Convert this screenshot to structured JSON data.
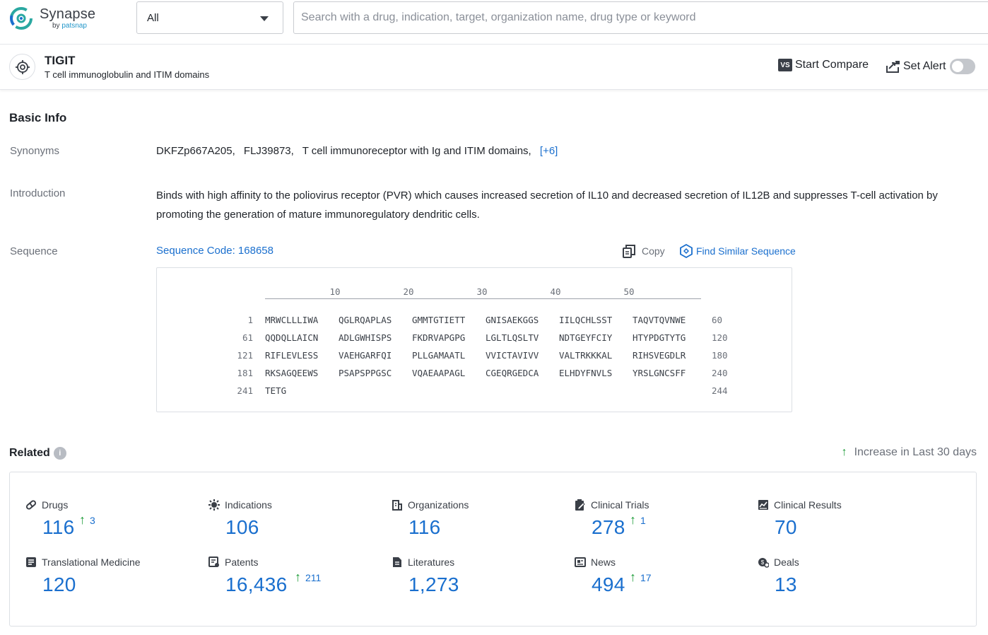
{
  "app": {
    "logo_name": "Synapse",
    "logo_by": "by",
    "logo_brand": "patsnap",
    "brand_color": "#1a6fce"
  },
  "search": {
    "scope": "All",
    "placeholder": "Search with a drug, indication, target, organization name, drug type or keyword"
  },
  "target": {
    "name": "TIGIT",
    "full_name": "T cell immunoglobulin and ITIM domains",
    "start_compare": "Start Compare",
    "compare_icon_text": "VS",
    "set_alert": "Set Alert",
    "alert_enabled": false
  },
  "basic_info": {
    "title": "Basic Info",
    "synonyms_label": "Synonyms",
    "synonyms": [
      "DKFZp667A205,",
      "FLJ39873,",
      "T cell immunoreceptor with Ig and ITIM domains,"
    ],
    "synonyms_more": "[+6]",
    "introduction_label": "Introduction",
    "introduction": "Binds with high affinity to the poliovirus receptor (PVR) which causes increased secretion of IL10 and decreased secretion of IL12B and suppresses T-cell activation by promoting the generation of mature immunoregulatory dendritic cells.",
    "sequence_label": "Sequence",
    "sequence_code": "Sequence Code: 168658",
    "copy": "Copy",
    "find_similar": "Find Similar Sequence",
    "ruler": [
      "10",
      "20",
      "30",
      "40",
      "50"
    ],
    "rows": [
      {
        "start": "1",
        "blocks": [
          "MRWCLLLIWA",
          "QGLRQAPLAS",
          "GMMTGTIETT",
          "GNISAEKGGS",
          "IILQCHLSST",
          "TAQVTQVNWE"
        ],
        "end": "60"
      },
      {
        "start": "61",
        "blocks": [
          "QQDQLLAICN",
          "ADLGWHISPS",
          "FKDRVAPGPG",
          "LGLTLQSLTV",
          "NDTGEYFCIY",
          "HTYPDGTYTG"
        ],
        "end": "120"
      },
      {
        "start": "121",
        "blocks": [
          "RIFLEVLESS",
          "VAEHGARFQI",
          "PLLGAMAATL",
          "VVICTAVIVV",
          "VALTRKKKAL",
          "RIHSVEGDLR"
        ],
        "end": "180"
      },
      {
        "start": "181",
        "blocks": [
          "RKSAGQEEWS",
          "PSAPSPPGSC",
          "VQAEAAPAGL",
          "CGEQRGEDCA",
          "ELHDYFNVLS",
          "YRSLGNCSFF"
        ],
        "end": "240"
      },
      {
        "start": "241",
        "blocks": [
          "TETG",
          "",
          "",
          "",
          "",
          ""
        ],
        "end": "244"
      }
    ]
  },
  "related": {
    "title": "Related",
    "info_icon": "i",
    "increase_note": "Increase in Last 30 days",
    "stats": [
      {
        "label": "Drugs",
        "value": "116",
        "increase": "3",
        "icon": "pill-icon"
      },
      {
        "label": "Indications",
        "value": "106",
        "increase": "",
        "icon": "virus-icon"
      },
      {
        "label": "Organizations",
        "value": "116",
        "increase": "",
        "icon": "building-icon"
      },
      {
        "label": "Clinical Trials",
        "value": "278",
        "increase": "1",
        "icon": "clipboard-edit-icon"
      },
      {
        "label": "Clinical Results",
        "value": "70",
        "increase": "",
        "icon": "chart-doc-icon"
      },
      {
        "label": "Translational Medicine",
        "value": "120",
        "increase": "",
        "icon": "translational-icon"
      },
      {
        "label": "Patents",
        "value": "16,436",
        "increase": "211",
        "icon": "patent-icon"
      },
      {
        "label": "Literatures",
        "value": "1,273",
        "increase": "",
        "icon": "literature-icon"
      },
      {
        "label": "News",
        "value": "494",
        "increase": "17",
        "icon": "news-icon"
      },
      {
        "label": "Deals",
        "value": "13",
        "increase": "",
        "icon": "deals-icon"
      }
    ]
  }
}
